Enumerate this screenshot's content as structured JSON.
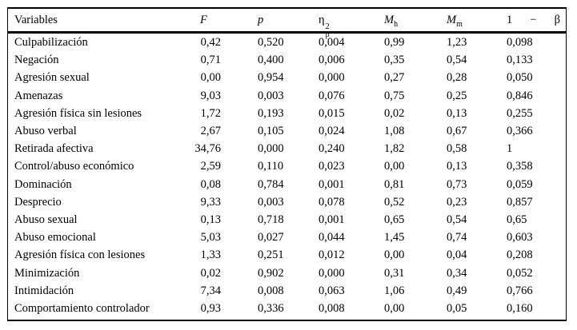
{
  "table": {
    "header": {
      "variables": "Variables",
      "f": "F",
      "p": "p",
      "eta": {
        "base": "η",
        "sub": "p",
        "sup": "2"
      },
      "mh": {
        "base": "M",
        "sub": "h"
      },
      "mm": {
        "base": "M",
        "sub": "m"
      },
      "power": {
        "one": "1",
        "minus": "−",
        "beta": "β"
      }
    },
    "rows": [
      {
        "name": "Culpabilización",
        "f": "0,42",
        "p": "0,520",
        "eta2": "0,004",
        "mh": "0,99",
        "mm": "1,23",
        "power": "0,098"
      },
      {
        "name": "Negación",
        "f": "0,71",
        "p": "0,400",
        "eta2": "0,006",
        "mh": "0,35",
        "mm": "0,54",
        "power": "0,133"
      },
      {
        "name": "Agresión sexual",
        "f": "0,00",
        "p": "0,954",
        "eta2": "0,000",
        "mh": "0,27",
        "mm": "0,28",
        "power": "0,050"
      },
      {
        "name": "Amenazas",
        "f": "9,03",
        "p": "0,003",
        "eta2": "0,076",
        "mh": "0,75",
        "mm": "0,25",
        "power": "0,846"
      },
      {
        "name": "Agresión física sin lesiones",
        "f": "1,72",
        "p": "0,193",
        "eta2": "0,015",
        "mh": "0,02",
        "mm": "0,13",
        "power": "0,255"
      },
      {
        "name": "Abuso verbal",
        "f": "2,67",
        "p": "0,105",
        "eta2": "0,024",
        "mh": "1,08",
        "mm": "0,67",
        "power": "0,366"
      },
      {
        "name": "Retirada afectiva",
        "f": "34,76",
        "p": "0,000",
        "eta2": "0,240",
        "mh": "1,82",
        "mm": "0,58",
        "power": "1"
      },
      {
        "name": "Control/abuso económico",
        "f": "2,59",
        "p": "0,110",
        "eta2": "0,023",
        "mh": "0,00",
        "mm": "0,13",
        "power": "0,358"
      },
      {
        "name": "Dominación",
        "f": "0,08",
        "p": "0,784",
        "eta2": "0,001",
        "mh": "0,81",
        "mm": "0,73",
        "power": "0,059"
      },
      {
        "name": "Desprecio",
        "f": "9,33",
        "p": "0,003",
        "eta2": "0,078",
        "mh": "0,52",
        "mm": "0,23",
        "power": "0,857"
      },
      {
        "name": "Abuso sexual",
        "f": "0,13",
        "p": "0,718",
        "eta2": "0,001",
        "mh": "0,65",
        "mm": "0,54",
        "power": "0,65"
      },
      {
        "name": "Abuso emocional",
        "f": "5,03",
        "p": "0,027",
        "eta2": "0,044",
        "mh": "1,45",
        "mm": "0,74",
        "power": "0,603"
      },
      {
        "name": "Agresión física con lesiones",
        "f": "1,33",
        "p": "0,251",
        "eta2": "0,012",
        "mh": "0,00",
        "mm": "0,04",
        "power": "0,208"
      },
      {
        "name": "Minimización",
        "f": "0,02",
        "p": "0,902",
        "eta2": "0,000",
        "mh": "0,31",
        "mm": "0,34",
        "power": "0,052"
      },
      {
        "name": "Intimidación",
        "f": "7,34",
        "p": "0,008",
        "eta2": "0,063",
        "mh": "1,06",
        "mm": "0,49",
        "power": "0,766"
      },
      {
        "name": "Comportamiento controlador",
        "f": "0,93",
        "p": "0,336",
        "eta2": "0,008",
        "mh": "0,00",
        "mm": "0,05",
        "power": "0,160"
      }
    ]
  }
}
